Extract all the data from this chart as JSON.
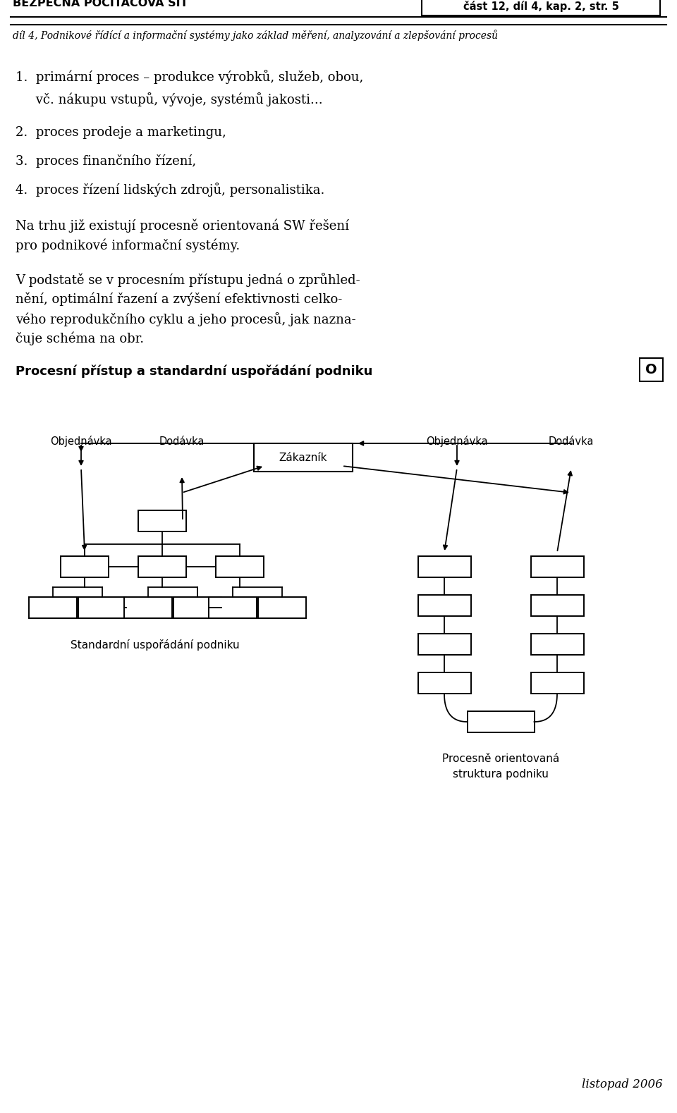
{
  "bg_color": "#ffffff",
  "header_title": "BEZPEČNÁ POČÍTAČOVÁ SÍŤ",
  "header_box_text": "část 12, díl 4, kap. 2, str. 5",
  "header_subtitle": "díl 4, Podnikové řídící a informační systémy jako základ měření, analyzování a zlepšování procesů",
  "body_lines": [
    [
      "1.  primární proces – produkce výrobků, služeb, obou,",
      1480
    ],
    [
      "     vč. nákupu vstupů, vývoje, systémů jakosti...",
      1448
    ],
    [
      "2.  proces prodeje a marketingu,",
      1400
    ],
    [
      "3.  proces finančního řízení,",
      1360
    ],
    [
      "4.  proces řízení lidských zdrojů, personalistika.",
      1320
    ],
    [
      "Na trhu již existují procesně orientovaná SW řešení",
      1268
    ],
    [
      "pro podnikové informační systémy.",
      1240
    ],
    [
      "V podstatě se v procesním přístupu jedná o zprůhled-",
      1192
    ],
    [
      "nění, optimální řazení a zvýšení efektivnosti celko-",
      1164
    ],
    [
      "vého reprodukčního cyklu a jeho procesů, jak nazna-",
      1136
    ],
    [
      "čuje schéma na obr.",
      1108
    ]
  ],
  "diagram_title": "Procesní přístup a standardní uspořádání podniku",
  "zakaznik": "Zákazník",
  "objednavka": "Objednávka",
  "dodavka": "Dodávka",
  "left_caption": "Standardní uspořádání podniku",
  "right_caption1": "Procesně orientovaná",
  "right_caption2": "struktura podniku",
  "footer_text": "listopad 2006"
}
